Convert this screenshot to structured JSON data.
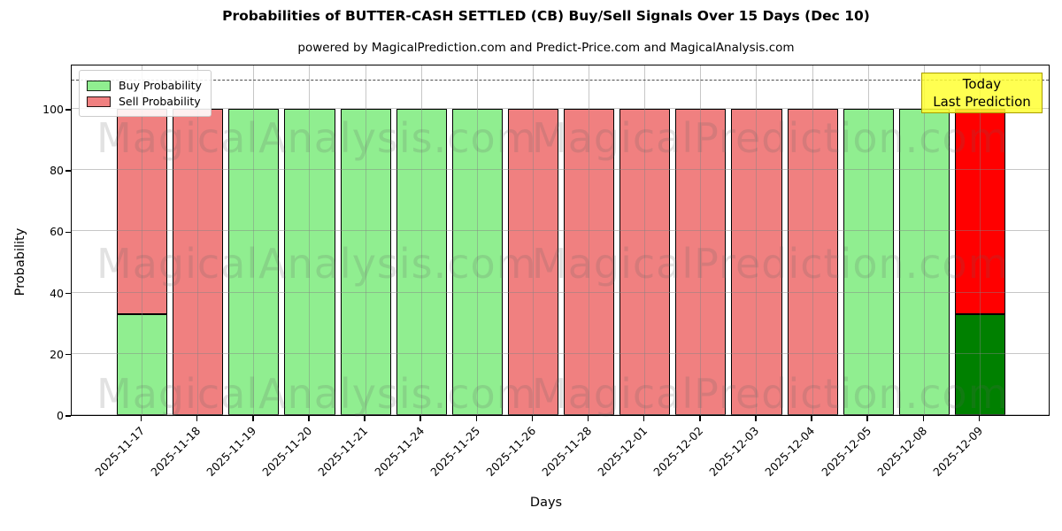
{
  "title": "Probabilities of BUTTER-CASH SETTLED (CB) Buy/Sell Signals Over 15 Days (Dec 10)",
  "subtitle": "powered by MagicalPrediction.com and Predict-Price.com and MagicalAnalysis.com",
  "legend": {
    "buy_label": "Buy Probability",
    "sell_label": "Sell Probability"
  },
  "annotation": {
    "line1": "Today",
    "line2": "Last Prediction"
  },
  "watermarks": {
    "left_text": "MagicalAnalysis.com",
    "right_text": "MagicalPrediction.com"
  },
  "axes": {
    "x_label": "Days",
    "y_label": "Probability",
    "y_ticks": [
      0,
      20,
      40,
      60,
      80,
      100
    ]
  },
  "colors": {
    "buy": "#90EE90",
    "sell": "#F08080",
    "buy_today": "#008000",
    "sell_today": "#FF0000",
    "bar_edge": "#000000",
    "today_box_bg": "#FFFF33",
    "today_box_border": "#A89C00",
    "grid": "#828282",
    "dashed_line": "#4D4D4D"
  },
  "chart_data": {
    "type": "bar",
    "stacked": true,
    "title": "Probabilities of BUTTER-CASH SETTLED (CB) Buy/Sell Signals Over 15 Days (Dec 10)",
    "xlabel": "Days",
    "ylabel": "Probability",
    "ylim": [
      0,
      114.7
    ],
    "grid": true,
    "legend_position": "upper left",
    "threshold_dashed_line_y": 110,
    "categories": [
      "2025-11-17",
      "2025-11-18",
      "2025-11-19",
      "2025-11-20",
      "2025-11-21",
      "2025-11-24",
      "2025-11-25",
      "2025-11-26",
      "2025-11-28",
      "2025-12-01",
      "2025-12-02",
      "2025-12-03",
      "2025-12-04",
      "2025-12-05",
      "2025-12-08",
      "2025-12-09"
    ],
    "series": [
      {
        "name": "Buy Probability",
        "values": [
          33,
          0,
          100,
          100,
          100,
          100,
          100,
          0,
          0,
          0,
          0,
          0,
          0,
          100,
          100,
          33
        ]
      },
      {
        "name": "Sell Probability",
        "values": [
          67,
          100,
          0,
          0,
          0,
          0,
          0,
          100,
          100,
          100,
          100,
          100,
          100,
          0,
          0,
          67
        ]
      }
    ],
    "today_index": 15
  }
}
